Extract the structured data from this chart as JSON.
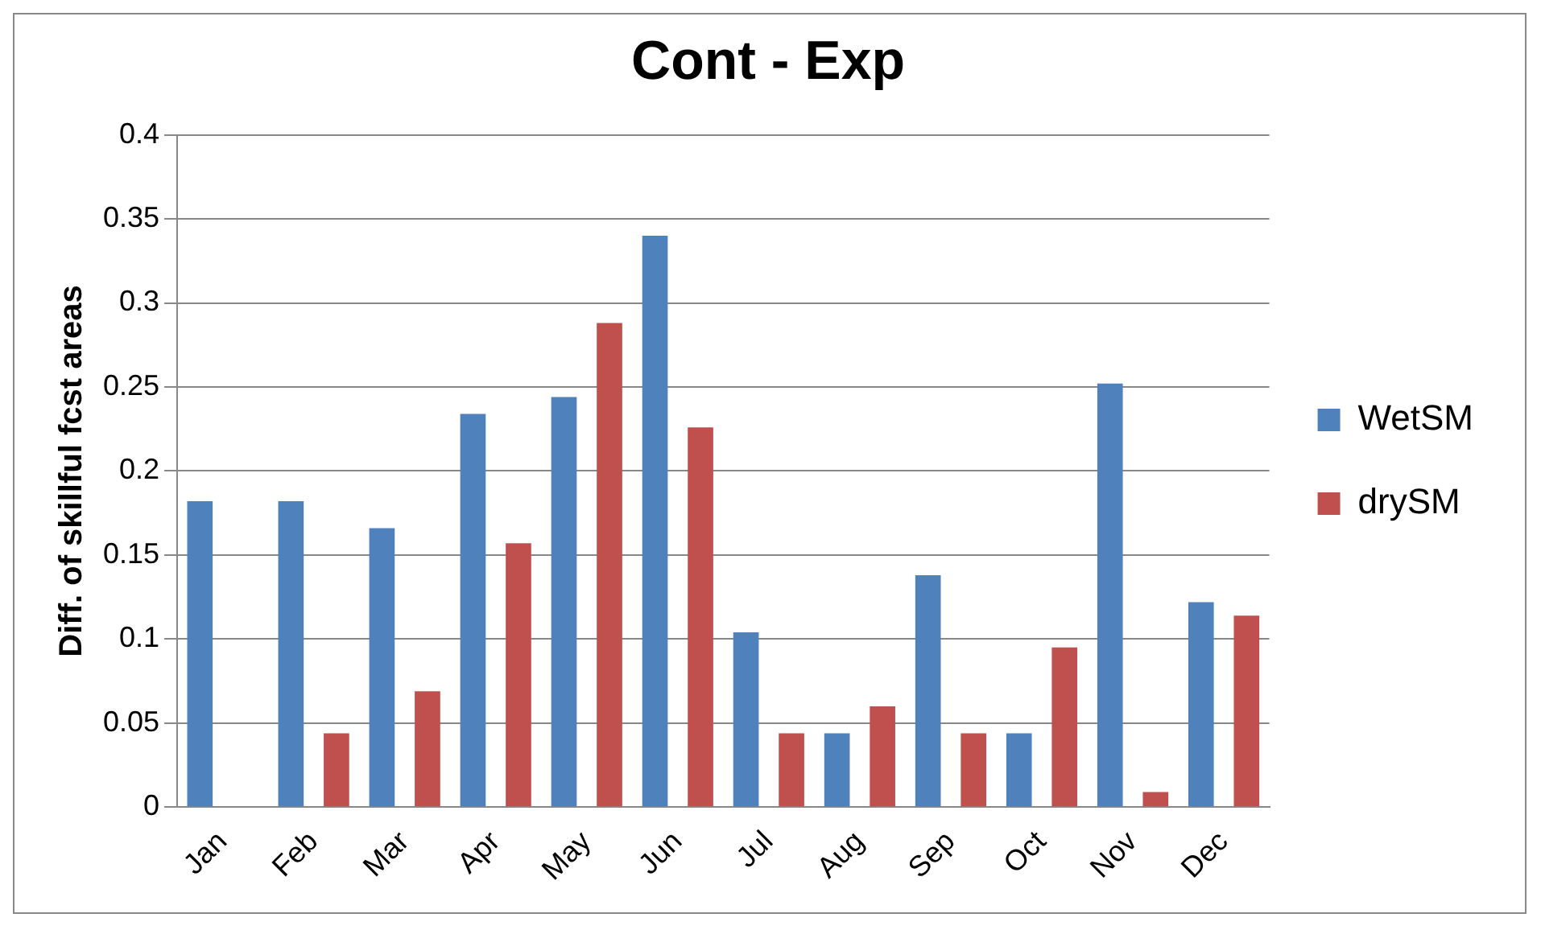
{
  "chart_data": {
    "type": "bar",
    "title": "Cont - Exp",
    "ylabel": "Diff. of skillful fcst areas",
    "categories": [
      "Jan",
      "Feb",
      "Mar",
      "Apr",
      "May",
      "Jun",
      "Jul",
      "Aug",
      "Sep",
      "Oct",
      "Nov",
      "Dec"
    ],
    "series": [
      {
        "name": "WetSM",
        "color": "#4f81bd",
        "values": [
          0.182,
          0.182,
          0.166,
          0.234,
          0.244,
          0.34,
          0.104,
          0.044,
          0.138,
          0.044,
          0.252,
          0.122
        ]
      },
      {
        "name": "drySM",
        "color": "#c0504d",
        "values": [
          0,
          0.044,
          0.069,
          0.157,
          0.288,
          0.226,
          0.044,
          0.06,
          0.044,
          0.095,
          0.009,
          0.114
        ]
      }
    ],
    "ylim": [
      0,
      0.4
    ],
    "yticks": [
      0,
      0.05,
      0.1,
      0.15,
      0.2,
      0.25,
      0.3,
      0.35,
      0.4
    ],
    "grid": "y",
    "legend": "right"
  }
}
